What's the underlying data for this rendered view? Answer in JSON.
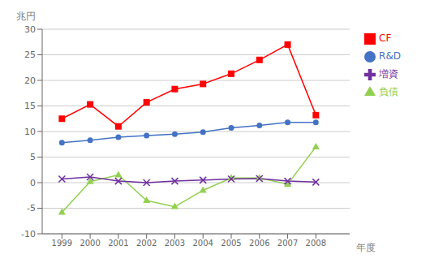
{
  "chart_data": {
    "type": "line",
    "xlabel": "年度",
    "ylabel": "兆円",
    "x": [
      1999,
      2000,
      2001,
      2002,
      2003,
      2004,
      2005,
      2006,
      2007,
      2008
    ],
    "xlim": [
      1998.3,
      2009.2
    ],
    "xticks": [
      1999,
      2000,
      2001,
      2002,
      2003,
      2004,
      2005,
      2006,
      2007,
      2008
    ],
    "ylim": [
      -10,
      30
    ],
    "yticks": [
      -10,
      -5,
      0,
      5,
      10,
      15,
      20,
      25,
      30
    ],
    "grid": "y",
    "legend": "right",
    "series": [
      {
        "name": "R&D",
        "color": "#4472C4",
        "marker": "circle",
        "values": [
          7.8,
          8.3,
          8.9,
          9.2,
          9.5,
          9.9,
          10.7,
          11.2,
          11.8,
          11.8
        ]
      },
      {
        "name": "CF",
        "color": "#FF0000",
        "marker": "square",
        "values": [
          12.5,
          15.3,
          11.0,
          15.7,
          18.3,
          19.3,
          21.3,
          24.0,
          27.0,
          13.2
        ]
      },
      {
        "name": "負債",
        "color": "#92D050",
        "marker": "triangle",
        "values": [
          -5.8,
          0.2,
          1.5,
          -3.5,
          -4.7,
          -1.5,
          0.9,
          0.9,
          -0.3,
          7.0
        ]
      },
      {
        "name": "増資",
        "color": "#7030A0",
        "marker": "x",
        "values": [
          0.7,
          1.1,
          0.3,
          0.0,
          0.3,
          0.5,
          0.7,
          0.8,
          0.3,
          0.1
        ]
      }
    ]
  }
}
